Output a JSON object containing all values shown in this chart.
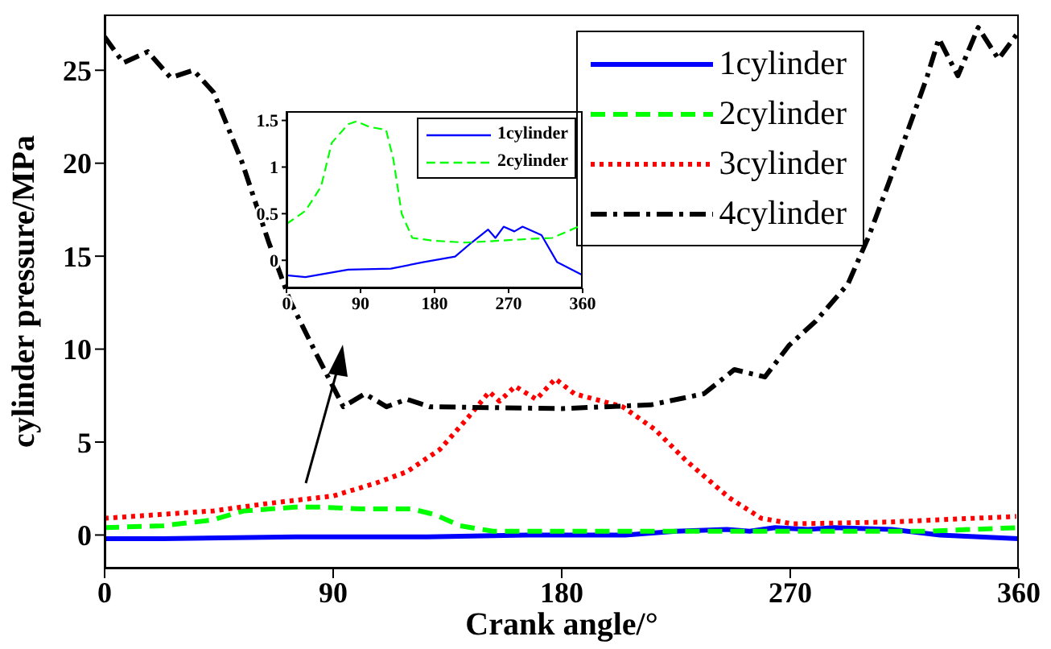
{
  "chart_data": [
    {
      "type": "line",
      "xlabel": "Crank angle/°",
      "ylabel": "cylinder pressure/MPa",
      "xlim": [
        0,
        360
      ],
      "xticks": [
        0,
        90,
        180,
        270,
        360
      ],
      "ylim": [
        -1.8,
        28
      ],
      "yticks": [
        0,
        5,
        10,
        15,
        20,
        25
      ],
      "grid": false,
      "legend": "top right",
      "series": [
        {
          "name": "1cylinder",
          "color": "#0000ff",
          "line_style": "solid",
          "x": [
            0,
            23,
            75,
            127,
            166,
            205,
            225,
            245,
            254,
            264,
            277,
            287,
            310,
            329,
            360
          ],
          "values": [
            -0.2,
            -0.2,
            -0.1,
            -0.1,
            0,
            0,
            0.2,
            0.3,
            0.2,
            0.4,
            0.3,
            0.4,
            0.3,
            0,
            -0.2
          ]
        },
        {
          "name": "2cylinder",
          "color": "#00ff00",
          "line_style": "dashed",
          "x": [
            0,
            23,
            42,
            55,
            75,
            85,
            101,
            121,
            130,
            140,
            153,
            179,
            218,
            258,
            297,
            323,
            360
          ],
          "values": [
            0.4,
            0.5,
            0.8,
            1.3,
            1.5,
            1.5,
            1.4,
            1.4,
            1.1,
            0.5,
            0.2,
            0.2,
            0.2,
            0.2,
            0.2,
            0.2,
            0.4
          ]
        },
        {
          "name": "3cylinder",
          "color": "#ff0000",
          "line_style": "dotted",
          "x": [
            0,
            43,
            64.5,
            90,
            107,
            119,
            132,
            143,
            151.5,
            155.5,
            161.7,
            170,
            177.5,
            185,
            204,
            216.5,
            229,
            246,
            258.6,
            271,
            309,
            359
          ],
          "values": [
            0.9,
            1.3,
            1.7,
            2.1,
            2.8,
            3.4,
            4.6,
            6.3,
            7.7,
            7.2,
            8.0,
            7.3,
            8.4,
            7.6,
            6.9,
            5.7,
            4.0,
            2.0,
            0.9,
            0.6,
            0.7,
            1.0
          ]
        },
        {
          "name": "4cylinder",
          "color": "#000000",
          "line_style": "dashdot",
          "x": [
            0,
            7.4,
            17,
            26,
            35,
            43,
            54,
            64.5,
            73,
            83.5,
            94,
            102.5,
            111,
            119,
            128,
            180,
            215,
            236,
            248,
            260,
            269.5,
            280,
            292.7,
            301,
            309.5,
            318,
            324,
            328.5,
            336,
            344,
            352,
            359
          ],
          "values": [
            26.8,
            25.4,
            26.0,
            24.6,
            25.0,
            23.8,
            20.1,
            15.8,
            12.6,
            9.7,
            6.9,
            7.6,
            6.9,
            7.3,
            6.9,
            6.8,
            7.0,
            7.6,
            8.9,
            8.5,
            10.2,
            11.5,
            13.5,
            16.1,
            19.2,
            22.4,
            24.7,
            26.7,
            24.7,
            27.3,
            25.6,
            26.9
          ]
        }
      ]
    },
    {
      "type": "line",
      "xlim": [
        0,
        360
      ],
      "xticks": [
        0,
        90,
        180,
        270,
        360
      ],
      "ylim": [
        -0.3,
        1.6
      ],
      "yticks": [
        0,
        0.5,
        1,
        1.5
      ],
      "grid": false,
      "legend": "top right",
      "series": [
        {
          "name": "1cylinder",
          "color": "#0000ff",
          "line_style": "solid",
          "x": [
            0,
            23,
            75,
            127,
            166,
            205,
            225,
            245,
            254,
            264,
            277,
            287,
            310,
            329,
            360
          ],
          "values": [
            -0.16,
            -0.18,
            -0.1,
            -0.09,
            -0.02,
            0.04,
            0.19,
            0.33,
            0.24,
            0.36,
            0.31,
            0.36,
            0.27,
            -0.02,
            -0.16
          ]
        },
        {
          "name": "2cylinder",
          "color": "#00ff00",
          "line_style": "dashed",
          "x": [
            0,
            23,
            42,
            55,
            75,
            85,
            101,
            121,
            130,
            140,
            153,
            179,
            218,
            258,
            297,
            323,
            360
          ],
          "values": [
            0.39,
            0.53,
            0.79,
            1.26,
            1.46,
            1.49,
            1.43,
            1.4,
            1.08,
            0.5,
            0.24,
            0.21,
            0.19,
            0.21,
            0.23,
            0.24,
            0.38
          ]
        }
      ]
    }
  ]
}
